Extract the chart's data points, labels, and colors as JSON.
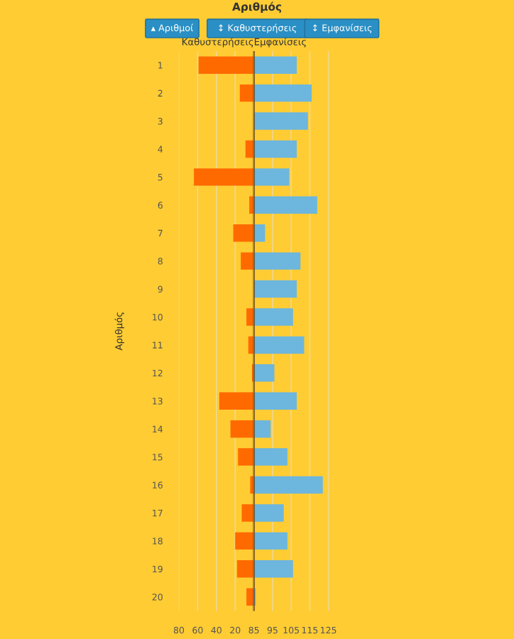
{
  "chart_data": [
    {
      "type": "bar",
      "orientation": "horizontal",
      "title": "Καθυστερήσεις",
      "ylabel": "Αριθμός",
      "categories": [
        "1",
        "2",
        "3",
        "4",
        "5",
        "6",
        "7",
        "8",
        "9",
        "10",
        "11",
        "12",
        "13",
        "14",
        "15",
        "16",
        "17",
        "18",
        "19",
        "20"
      ],
      "values": [
        59,
        15,
        0,
        9,
        64,
        5,
        22,
        14,
        0,
        8,
        6,
        2,
        37,
        25,
        17,
        4,
        13,
        20,
        18,
        8
      ],
      "color": "#ff6a00",
      "xlim": [
        80,
        0
      ],
      "xticks": [
        80,
        60,
        40,
        20
      ],
      "grid": "x",
      "annotations": [
        "Αριθμός",
        "▴ Αριθμοί",
        "↕ Καθυστερήσεις",
        "↕ Εμφανίσεις"
      ]
    },
    {
      "type": "bar",
      "orientation": "horizontal",
      "title": "Εμφανίσεις",
      "categories": [
        "1",
        "2",
        "3",
        "4",
        "5",
        "6",
        "7",
        "8",
        "9",
        "10",
        "11",
        "12",
        "13",
        "14",
        "15",
        "16",
        "17",
        "18",
        "19",
        "20"
      ],
      "values": [
        108,
        116,
        114,
        108,
        104,
        119,
        91,
        110,
        108,
        106,
        112,
        96,
        108,
        94,
        103,
        122,
        101,
        103,
        106,
        86
      ],
      "color": "#6db6de",
      "xlim": [
        85,
        130
      ],
      "xticks": [
        85,
        95,
        105,
        115,
        125
      ],
      "grid": "x",
      "tick_labels": "x"
    }
  ]
}
